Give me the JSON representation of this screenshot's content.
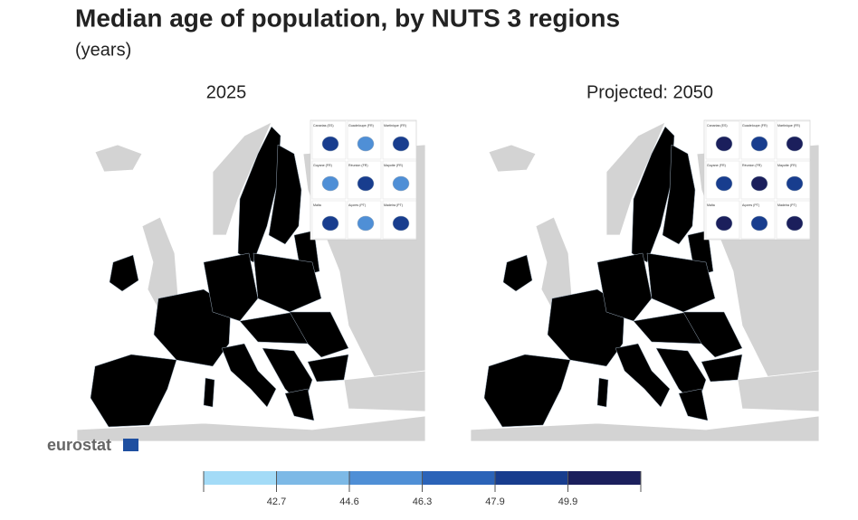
{
  "title": "Median age of population, by NUTS 3 regions",
  "subtitle": "(years)",
  "maps": [
    {
      "title": "2025"
    },
    {
      "title": "Projected: 2050"
    }
  ],
  "insets": [
    "Canarias (ES)",
    "Guadeloupe (FR)",
    "Martinique (FR)",
    "Guyane (FR)",
    "Réunion (FR)",
    "Mayotte (FR)",
    "Malta",
    "Açores (PT)",
    "Madeira (PT)"
  ],
  "legend": {
    "colors": [
      "#a3dbf7",
      "#7db9e6",
      "#4f8fd6",
      "#2b63b8",
      "#183d8e",
      "#1b1f5c"
    ],
    "breaks": [
      42.7,
      44.6,
      46.3,
      47.9,
      49.9
    ]
  },
  "logo": "eurostat"
}
